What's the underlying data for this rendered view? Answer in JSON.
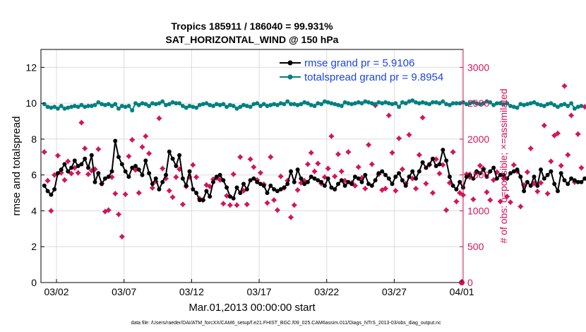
{
  "chart_data": {
    "type": "line",
    "title": "Tropics 185911 / 186040 = 99.931%",
    "subtitle": "SAT_HORIZONTAL_WIND @ 150 hPa",
    "xlabel": "Mar.01,2013 00:00:00 start",
    "ylabel": "rmse and totalspread",
    "y2label": "# of obs: o=possible; ×=assimilated",
    "footer": "data file: /Users/raeder/DAI/ATM_forcXX/CAM6_setup/f.e21.FHIST_BGC.f09_025.CAM6assim.011/Diags_NTrS_2013-03/obs_diag_output.nc",
    "x_tick_labels": [
      "03/02",
      "03/07",
      "03/12",
      "03/17",
      "03/22",
      "03/27",
      "04/01"
    ],
    "x_tick_days": [
      1,
      6,
      11,
      16,
      21,
      26,
      31
    ],
    "xlim": [
      -0.15,
      31.1
    ],
    "ylim": [
      0,
      13
    ],
    "y_ticks": [
      0,
      2,
      4,
      6,
      8,
      10,
      12
    ],
    "y2lim": [
      0,
      3250
    ],
    "y2_ticks": [
      0,
      500,
      1000,
      1500,
      2000,
      2500,
      3000
    ],
    "legend": [
      {
        "label": "rmse grand pr = 5.9106",
        "color": "#000000",
        "marker": "circle"
      },
      {
        "label": "totalspread grand pr = 9.8954",
        "color": "#008080",
        "marker": "circle"
      }
    ],
    "colors": {
      "rmse": "#000000",
      "spread": "#008080",
      "obs": "#d4145a"
    },
    "x_step_days": 0.25,
    "series": [
      {
        "name": "rmse",
        "values": [
          5.4,
          5.1,
          4.9,
          5.2,
          6.1,
          6.3,
          6.6,
          6.2,
          6.4,
          6.8,
          6.5,
          6.6,
          6.9,
          6.4,
          7.1,
          5.6,
          6.1,
          5.5,
          5.8,
          5.9,
          6.2,
          7.9,
          7.0,
          6.6,
          6.2,
          5.9,
          6.4,
          6.5,
          6.3,
          6.0,
          6.8,
          6.1,
          5.5,
          5.8,
          5.2,
          5.6,
          6.0,
          7.3,
          6.9,
          6.5,
          7.1,
          5.8,
          5.4,
          6.2,
          5.2,
          5.0,
          4.6,
          4.6,
          5.1,
          4.8,
          5.6,
          5.9,
          6.0,
          5.7,
          5.3,
          4.8,
          4.7,
          5.3,
          5.0,
          5.5,
          5.2,
          5.7,
          5.8,
          5.6,
          5.5,
          5.4,
          5.0,
          5.4,
          5.2,
          5.1,
          5.2,
          5.3,
          5.5,
          6.2,
          5.6,
          6.3,
          5.8,
          5.5,
          5.6,
          5.9,
          5.8,
          5.7,
          5.6,
          5.4,
          5.8,
          5.3,
          5.2,
          5.5,
          5.7,
          5.4,
          5.6,
          5.5,
          5.9,
          5.8,
          5.6,
          6.0,
          5.5,
          5.4,
          5.7,
          6.1,
          6.2,
          6.0,
          5.8,
          5.5,
          5.9,
          6.1,
          5.7,
          5.4,
          5.9,
          6.2,
          5.8,
          6.2,
          6.7,
          6.4,
          6.6,
          6.9,
          6.5,
          6.6,
          7.4,
          6.8,
          5.9,
          5.4,
          5.2,
          5.6,
          5.3,
          5.9,
          6.0,
          5.8,
          6.2,
          6.1,
          6.3,
          5.9,
          6.2,
          6.4,
          5.8,
          6.0,
          6.0,
          5.8,
          6.1,
          6.2,
          6.3,
          5.9,
          5.1,
          5.6,
          5.4,
          5.9,
          5.4,
          6.3,
          5.8,
          6.0,
          6.2,
          5.5,
          5.1,
          6.1,
          5.7,
          5.5,
          5.8,
          5.7,
          5.6,
          5.6,
          5.8,
          5.7,
          6.1,
          6.3
        ]
      },
      {
        "name": "totalspread",
        "values": [
          9.95,
          9.8,
          9.75,
          9.8,
          9.7,
          9.85,
          9.7,
          9.75,
          9.8,
          9.85,
          9.8,
          9.9,
          9.8,
          9.85,
          9.85,
          9.9,
          10.05,
          9.95,
          9.9,
          9.95,
          9.85,
          9.95,
          9.7,
          9.85,
          9.8,
          9.85,
          9.6,
          10.0,
          9.9,
          10.0,
          9.95,
          9.85,
          10.0,
          9.95,
          10.0,
          10.1,
          9.9,
          9.95,
          10.05,
          10.0,
          10.0,
          9.85,
          9.75,
          9.85,
          9.8,
          9.75,
          9.9,
          9.95,
          10.0,
          9.9,
          9.85,
          9.95,
          9.9,
          9.95,
          9.8,
          9.9,
          9.85,
          9.7,
          9.8,
          9.9,
          9.85,
          9.8,
          9.95,
          10.0,
          9.85,
          9.95,
          9.85,
          9.9,
          9.95,
          9.9,
          10.0,
          9.95,
          10.1,
          9.95,
          9.95,
          9.9,
          9.95,
          10.05,
          10.0,
          9.9,
          9.85,
          10.0,
          9.95,
          10.1,
          10.05,
          10.0,
          9.95,
          9.9,
          9.85,
          10.05,
          10.0,
          9.95,
          10.0,
          10.05,
          10.0,
          10.1,
          10.05,
          10.0,
          9.95,
          10.05,
          10.0,
          10.05,
          10.0,
          9.95,
          10.0,
          9.8,
          10.05,
          10.0,
          10.1,
          10.15,
          10.05,
          10.0,
          10.05,
          10.0,
          9.95,
          10.05,
          10.05,
          10.0,
          10.1,
          9.95,
          9.9,
          10.0,
          10.0,
          10.0,
          10.05,
          9.95,
          10.0,
          10.05,
          10.0,
          9.95,
          10.0,
          10.1,
          10.05,
          9.9,
          10.0,
          10.0,
          9.95,
          10.0,
          9.85,
          9.8,
          9.75,
          9.95,
          9.9,
          9.95,
          10.0,
          10.05,
          9.95,
          9.9,
          9.85,
          9.95,
          10.0,
          9.9,
          9.8,
          9.9,
          9.95,
          9.85,
          10.0,
          9.7,
          9.8,
          9.85
        ]
      },
      {
        "name": "obs_assimilated",
        "axis": "right",
        "values": [
          1820,
          1420,
          1000,
          1500,
          1770,
          1530,
          1430,
          1690,
          1520,
          1600,
          1530,
          2230,
          1870,
          1510,
          1560,
          1580,
          1860,
          1380,
          990,
          1010,
          1470,
          1240,
          950,
          640,
          1230,
          1760,
          1990,
          1570,
          1250,
          1890,
          2040,
          1800,
          1320,
          1410,
          2290,
          1590,
          1450,
          1280,
          1190,
          1470,
          1580,
          1090,
          1340,
          1470,
          1640,
          1470,
          1170,
          1150,
          1360,
          1340,
          1440,
          1460,
          1430,
          1100,
          1210,
          1080,
          1510,
          1080,
          1750,
          1280,
          1090,
          1720,
          1610,
          1430,
          1530,
          1370,
          1110,
          1750,
          1150,
          1010,
          1480,
          1320,
          1420,
          910,
          1080,
          1290,
          1390,
          1420,
          1650,
          1810,
          1550,
          1660,
          1380,
          1470,
          1590,
          2040,
          1480,
          1790,
          1550,
          1420,
          1820,
          1390,
          1350,
          1610,
          1460,
          1310,
          1920,
          1650,
          2470,
          1510,
          1290,
          1310,
          2330,
          1810,
          1280,
          2010,
          1580,
          1380,
          2060,
          1450,
          1310,
          1780,
          2300,
          1380,
          1640,
          1250,
          1720,
          1520,
          1640,
          1010,
          1390,
          1820,
          1130,
          1250,
          1220,
          1510,
          1470,
          1160,
          1540,
          1630,
          1590,
          1260,
          1150,
          1430,
          1540,
          1130,
          1450,
          1200,
          1120,
          1640,
          1550,
          1060,
          1360,
          1540,
          1870,
          1380,
          1270,
          1390,
          2190,
          1240,
          1690,
          2050,
          2080,
          1630,
          2740,
          1780,
          2330,
          1400,
          2070,
          1600,
          2450,
          2440,
          2170,
          1650
        ]
      }
    ]
  }
}
